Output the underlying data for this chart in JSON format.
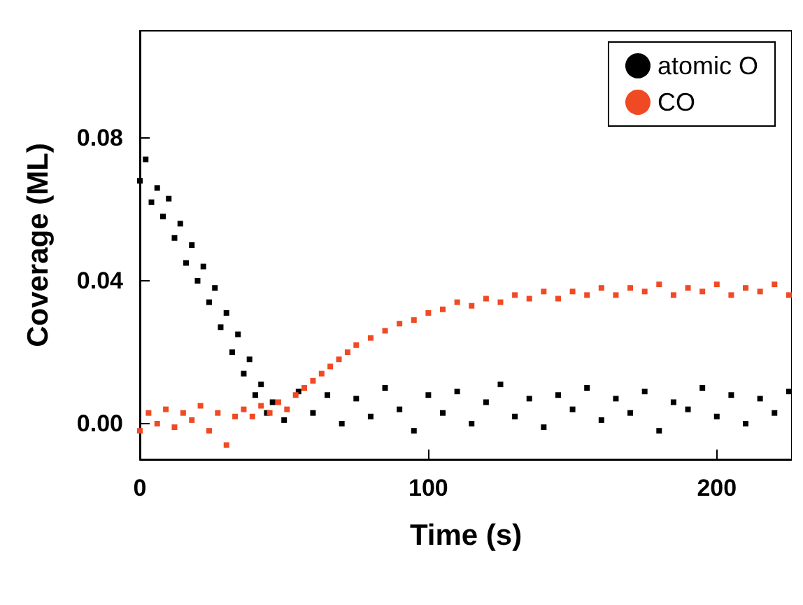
{
  "chart_data": {
    "type": "scatter",
    "xlabel": "Time (s)",
    "ylabel": "Coverage (ML)",
    "xlim": [
      0,
      226
    ],
    "ylim": [
      -0.01,
      0.11
    ],
    "xticks": [
      0,
      100,
      200
    ],
    "yticks": [
      {
        "value": 0,
        "label": "0.00"
      },
      {
        "value": 0.04,
        "label": "0.04"
      },
      {
        "value": 0.08,
        "label": "0.08"
      }
    ],
    "grid": false,
    "legend": "top right",
    "marker": "square",
    "series": [
      {
        "name": "atomic O",
        "color": "#000000",
        "x": [
          0,
          2,
          4,
          6,
          8,
          10,
          12,
          14,
          16,
          18,
          20,
          22,
          24,
          26,
          28,
          30,
          32,
          34,
          36,
          38,
          40,
          42,
          44,
          46,
          50,
          55,
          60,
          65,
          70,
          75,
          80,
          85,
          90,
          95,
          100,
          105,
          110,
          115,
          120,
          125,
          130,
          135,
          140,
          145,
          150,
          155,
          160,
          165,
          170,
          175,
          180,
          185,
          190,
          195,
          200,
          205,
          210,
          215,
          220,
          225
        ],
        "values": [
          0.068,
          0.074,
          0.062,
          0.066,
          0.058,
          0.063,
          0.052,
          0.056,
          0.045,
          0.05,
          0.04,
          0.044,
          0.034,
          0.038,
          0.027,
          0.031,
          0.02,
          0.025,
          0.014,
          0.018,
          0.008,
          0.011,
          0.003,
          0.006,
          0.001,
          0.009,
          0.003,
          0.008,
          0,
          0.007,
          0.002,
          0.01,
          0.004,
          -0.002,
          0.008,
          0.003,
          0.009,
          0,
          0.006,
          0.011,
          0.002,
          0.007,
          -0.001,
          0.008,
          0.004,
          0.01,
          0.001,
          0.007,
          0.003,
          0.009,
          -0.002,
          0.006,
          0.004,
          0.01,
          0.002,
          0.008,
          0,
          0.007,
          0.003,
          0.009
        ]
      },
      {
        "name": "CO",
        "color": "#f04a24",
        "x": [
          0,
          3,
          6,
          9,
          12,
          15,
          18,
          21,
          24,
          27,
          30,
          33,
          36,
          39,
          42,
          45,
          48,
          51,
          54,
          57,
          60,
          63,
          66,
          69,
          72,
          75,
          80,
          85,
          90,
          95,
          100,
          105,
          110,
          115,
          120,
          125,
          130,
          135,
          140,
          145,
          150,
          155,
          160,
          165,
          170,
          175,
          180,
          185,
          190,
          195,
          200,
          205,
          210,
          215,
          220,
          225
        ],
        "values": [
          -0.002,
          0.003,
          0,
          0.004,
          -0.001,
          0.003,
          0.001,
          0.005,
          -0.002,
          0.003,
          -0.006,
          0.002,
          0.004,
          0.002,
          0.005,
          0.003,
          0.006,
          0.004,
          0.008,
          0.01,
          0.012,
          0.014,
          0.016,
          0.018,
          0.02,
          0.022,
          0.024,
          0.026,
          0.028,
          0.029,
          0.031,
          0.032,
          0.034,
          0.033,
          0.035,
          0.034,
          0.036,
          0.035,
          0.037,
          0.035,
          0.037,
          0.036,
          0.038,
          0.036,
          0.038,
          0.037,
          0.039,
          0.036,
          0.038,
          0.037,
          0.039,
          0.036,
          0.038,
          0.037,
          0.039,
          0.036
        ]
      }
    ]
  }
}
